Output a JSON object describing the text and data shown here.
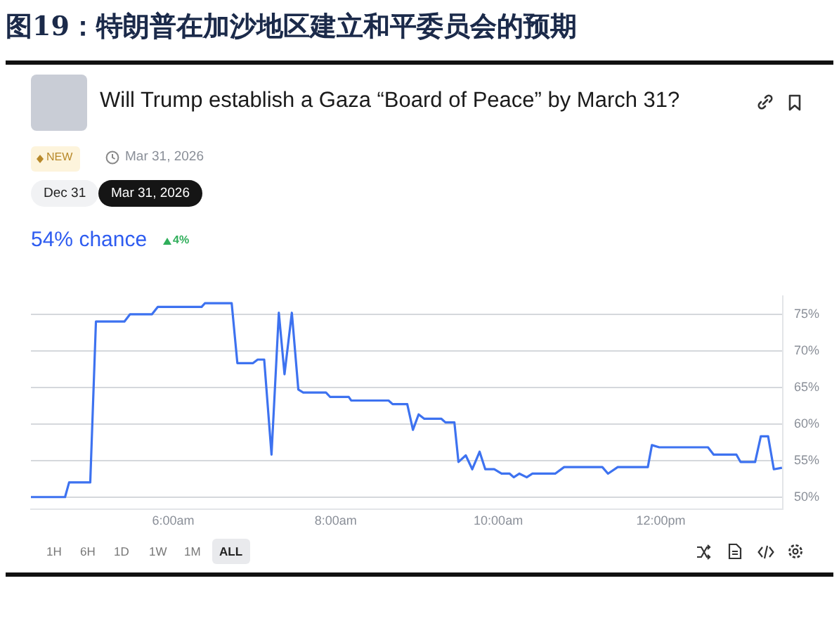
{
  "chart_data": {
    "type": "line",
    "title": "图19：特朗普在加沙地区建立和平委员会的预期",
    "subtitle": "Will Trump establish a Gaza “Board of Peace” by March 31?",
    "annotations": [
      "NEW",
      "Mar 31, 2026",
      "Dec 31",
      "Mar 31, 2026",
      "54% chance",
      "4%",
      "1H",
      "6H",
      "1D",
      "1W",
      "1M",
      "ALL"
    ],
    "x": [
      4.25,
      4.67,
      4.72,
      4.98,
      5.05,
      5.4,
      5.47,
      5.74,
      5.81,
      6.35,
      6.39,
      6.72,
      6.79,
      6.98,
      7.04,
      7.12,
      7.21,
      7.3,
      7.37,
      7.46,
      7.54,
      7.6,
      7.88,
      7.93,
      8.16,
      8.19,
      8.65,
      8.7,
      8.88,
      8.95,
      9.02,
      9.09,
      9.3,
      9.35,
      9.46,
      9.51,
      9.6,
      9.68,
      9.77,
      9.84,
      9.95,
      10.04,
      10.14,
      10.19,
      10.26,
      10.35,
      10.42,
      10.7,
      10.81,
      11.28,
      11.35,
      11.47,
      11.84,
      11.89,
      11.98,
      12.58,
      12.65,
      12.93,
      12.98,
      13.16,
      13.23,
      13.32,
      13.39,
      13.49
    ],
    "series": [
      {
        "color": "#3d72f0",
        "values": [
          50,
          50,
          52,
          52,
          74,
          74,
          75,
          75,
          76,
          76,
          76.5,
          76.5,
          68.3,
          68.3,
          68.8,
          68.8,
          55.8,
          75.2,
          66.8,
          75.2,
          64.7,
          64.3,
          64.3,
          63.7,
          63.7,
          63.2,
          63.2,
          62.7,
          62.7,
          59.2,
          61.3,
          60.7,
          60.7,
          60.2,
          60.2,
          54.8,
          55.7,
          53.8,
          56.2,
          53.8,
          53.8,
          53.2,
          53.2,
          52.7,
          53.2,
          52.7,
          53.2,
          53.2,
          54.1,
          54.1,
          53.2,
          54.1,
          54.1,
          57.1,
          56.8,
          56.8,
          55.8,
          55.8,
          54.8,
          54.8,
          58.3,
          58.3,
          53.8,
          54
        ]
      }
    ],
    "xlim": [
      4.25,
      13.5
    ],
    "xticks": [
      {
        "value": 6,
        "label": "6:00am"
      },
      {
        "value": 8,
        "label": "8:00am"
      },
      {
        "value": 10,
        "label": "10:00am"
      },
      {
        "value": 12,
        "label": "12:00pm"
      }
    ],
    "ylim": [
      48.3,
      77.5
    ],
    "yticks": [
      {
        "value": 50,
        "label": "50%"
      },
      {
        "value": 55,
        "label": "55%"
      },
      {
        "value": 60,
        "label": "60%"
      },
      {
        "value": 65,
        "label": "65%"
      },
      {
        "value": 70,
        "label": "70%"
      },
      {
        "value": 75,
        "label": "75%"
      }
    ],
    "grid": "y",
    "marker": "none",
    "line_style": "solid",
    "legend": false
  }
}
